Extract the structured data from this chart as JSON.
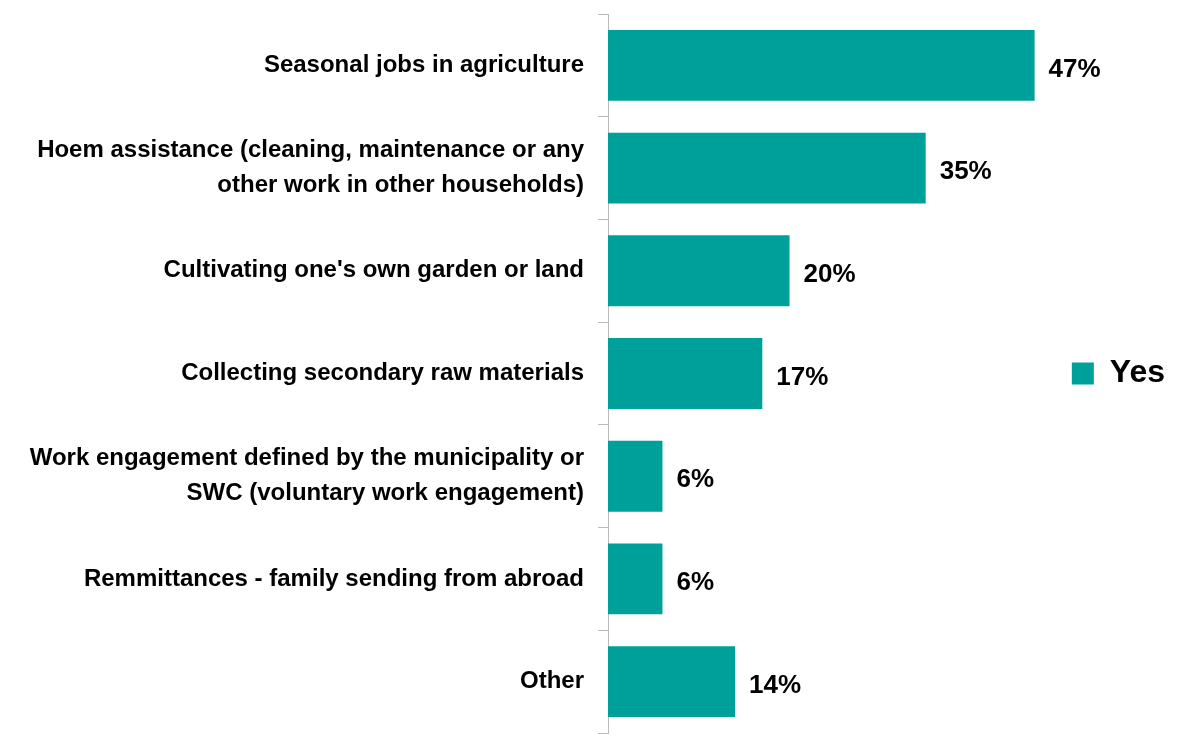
{
  "chart_data": {
    "type": "bar",
    "orientation": "horizontal",
    "categories": [
      "Seasonal jobs in agriculture",
      "Hoem assistance (cleaning, maintenance or any other work in other households)",
      "Cultivating one's own garden or land",
      "Collecting secondary raw materials",
      "Work engagement defined by the municipality or SWC (voluntary work engagement)",
      "Remmittances - family sending from abroad",
      "Other"
    ],
    "series": [
      {
        "name": "Yes",
        "color": "#00a09a",
        "values": [
          47,
          35,
          20,
          17,
          6,
          6,
          14
        ],
        "value_labels": [
          "47%",
          "35%",
          "20%",
          "17%",
          "6%",
          "6%",
          "14%"
        ]
      }
    ],
    "legend": "right",
    "grid": false
  }
}
